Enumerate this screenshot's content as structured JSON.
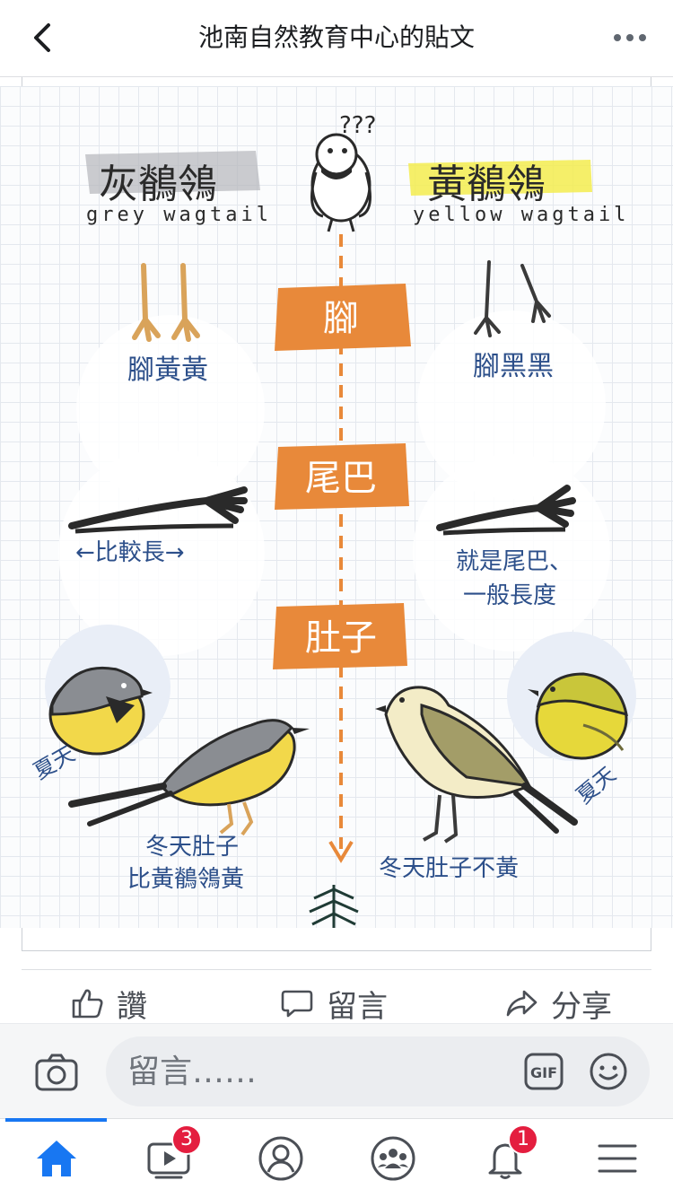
{
  "header": {
    "title": "池南自然教育中心的貼文"
  },
  "illustration": {
    "left_name": "灰鶺鴒",
    "left_name_en": "grey wagtail",
    "right_name": "黃鶺鴒",
    "right_name_en": "yellow wagtail",
    "question_marks": "???",
    "section_legs": "腳",
    "section_tail": "尾巴",
    "section_belly": "肚子",
    "left_legs_note": "腳黃黃",
    "right_legs_note": "腳黑黑",
    "left_tail_note": "←比較長→",
    "right_tail_note_1": "就是尾巴、",
    "right_tail_note_2": "一般長度",
    "left_summer": "夏天",
    "right_summer": "夏天",
    "left_winter_1": "冬天肚子",
    "left_winter_2": "比黃鶺鴒黃",
    "right_winter": "冬天肚子不黃"
  },
  "actions": {
    "like_label": "讚",
    "comment_label": "留言",
    "share_label": "分享"
  },
  "composer": {
    "placeholder": "留言……",
    "gif_label": "GIF"
  },
  "tabbar": {
    "video_badge": "3",
    "notifications_badge": "1"
  },
  "colors": {
    "accent": "#1877f2",
    "badge": "#e41e3f",
    "orange": "#e8893a",
    "ink_blue": "#2c4f8a",
    "grey_highlight": "#b5b7ba",
    "yellow_highlight": "#f3ec4f"
  }
}
